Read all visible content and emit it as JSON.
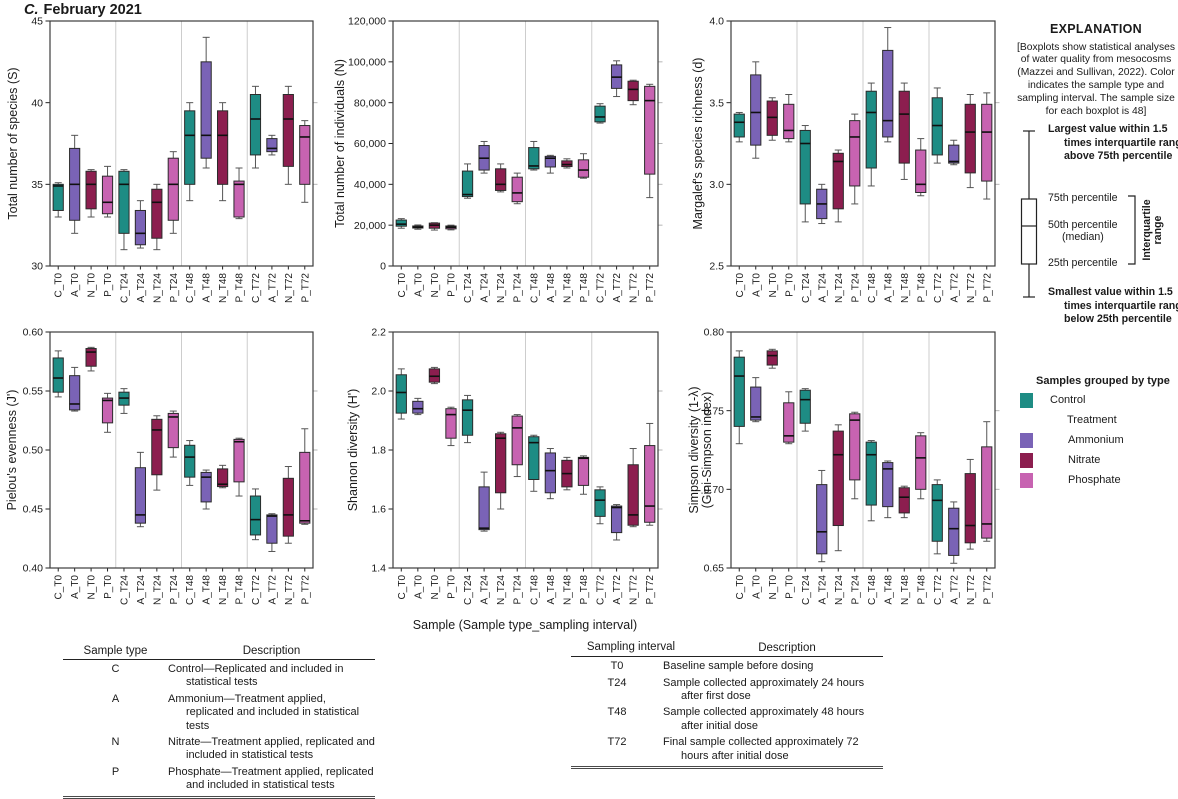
{
  "title": {
    "prefix": "C.",
    "label": "February 2021"
  },
  "x_axis_label": "Sample (Sample type_sampling interval)",
  "colors": {
    "control": "#1e8c84",
    "ammonium": "#7a63b6",
    "nitrate": "#8c1e4f",
    "phosphate": "#c763b1",
    "box_edge": "#2b2b2b",
    "whisker": "#555555",
    "median": "#101010",
    "separator": "#cdcdcd",
    "axis": "#3c3c3c"
  },
  "group_of": {
    "C": "control",
    "A": "ammonium",
    "N": "nitrate",
    "P": "phosphate"
  },
  "categories": [
    "C_T0",
    "A_T0",
    "N_T0",
    "P_T0",
    "C_T24",
    "A_T24",
    "N_T24",
    "P_T24",
    "C_T48",
    "A_T48",
    "N_T48",
    "P_T48",
    "C_T72",
    "A_T72",
    "N_T72",
    "P_T72"
  ],
  "box_columns": [
    "category",
    "whisker_low",
    "q1",
    "median",
    "q3",
    "whisker_high"
  ],
  "chart_data": [
    {
      "type": "box",
      "ylabel": [
        "Total number of species (S)"
      ],
      "ylabel_offset": 33,
      "ylim": [
        30,
        45
      ],
      "ytick_values": [
        30,
        35,
        40,
        45
      ],
      "ytick_labels": [
        "30",
        "35",
        "40",
        "45"
      ],
      "boxes": [
        [
          "C_T0",
          33.0,
          33.4,
          34.9,
          35.0,
          35.1
        ],
        [
          "A_T0",
          32.0,
          32.8,
          35.0,
          37.2,
          38.0
        ],
        [
          "N_T0",
          33.0,
          33.5,
          35.0,
          35.8,
          35.9
        ],
        [
          "P_T0",
          33.0,
          33.2,
          33.9,
          35.5,
          36.1
        ],
        [
          "C_T24",
          31.0,
          32.0,
          35.0,
          35.8,
          35.9
        ],
        [
          "A_T24",
          31.1,
          31.3,
          32.0,
          33.4,
          34.0
        ],
        [
          "N_T24",
          31.0,
          31.7,
          33.9,
          34.7,
          35.0
        ],
        [
          "P_T24",
          32.0,
          32.8,
          35.0,
          36.6,
          37.0
        ],
        [
          "C_T48",
          34.0,
          35.0,
          38.0,
          39.5,
          40.0
        ],
        [
          "A_T48",
          36.0,
          36.6,
          38.0,
          42.5,
          44.0
        ],
        [
          "N_T48",
          34.0,
          35.0,
          38.0,
          39.5,
          40.0
        ],
        [
          "P_T48",
          32.9,
          33.0,
          35.0,
          35.2,
          36.0
        ],
        [
          "C_T72",
          36.0,
          36.8,
          39.0,
          40.5,
          41.0
        ],
        [
          "A_T72",
          36.8,
          37.0,
          37.2,
          37.8,
          38.0
        ],
        [
          "N_T72",
          35.0,
          36.1,
          39.0,
          40.5,
          41.0
        ],
        [
          "P_T72",
          33.9,
          35.0,
          37.9,
          38.6,
          38.9
        ]
      ]
    },
    {
      "type": "box",
      "ylabel": [
        "Total number of individuals (N)"
      ],
      "ylabel_offset": 49,
      "ylim": [
        0,
        120000
      ],
      "ytick_values": [
        0,
        20000,
        40000,
        60000,
        80000,
        100000,
        120000
      ],
      "ytick_labels": [
        "0",
        "20,000",
        "40,000",
        "60,000",
        "80,000",
        "100,000",
        "120,000"
      ],
      "boxes": [
        [
          "C_T0",
          18500,
          19500,
          20500,
          22500,
          23200
        ],
        [
          "A_T0",
          18000,
          18600,
          19000,
          19600,
          20100
        ],
        [
          "N_T0",
          17600,
          18500,
          20000,
          21000,
          21200
        ],
        [
          "P_T0",
          17700,
          18200,
          19000,
          19600,
          20000
        ],
        [
          "C_T24",
          33200,
          34000,
          35000,
          46500,
          50000
        ],
        [
          "A_T24",
          45500,
          47000,
          52800,
          59000,
          61000
        ],
        [
          "N_T24",
          36300,
          37000,
          40000,
          47600,
          50000
        ],
        [
          "P_T24",
          30500,
          31500,
          35800,
          43500,
          45500
        ],
        [
          "C_T48",
          47000,
          47600,
          49000,
          58000,
          61000
        ],
        [
          "A_T48",
          45500,
          48500,
          52800,
          53700,
          54200
        ],
        [
          "N_T48",
          48000,
          48700,
          49700,
          51500,
          52500
        ],
        [
          "P_T48",
          43000,
          43500,
          47000,
          52000,
          55000
        ],
        [
          "C_T72",
          70000,
          70600,
          73000,
          78300,
          79500
        ],
        [
          "A_T72",
          83000,
          87000,
          92500,
          98500,
          100500
        ],
        [
          "N_T72",
          79000,
          81000,
          86500,
          90500,
          91000
        ],
        [
          "P_T72",
          33500,
          45000,
          81000,
          88000,
          89000
        ]
      ]
    },
    {
      "type": "box",
      "ylabel": [
        "Margalef's species richness (d)"
      ],
      "ylabel_offset": 29,
      "ylim": [
        2.5,
        4.0
      ],
      "ytick_values": [
        2.5,
        3.0,
        3.5,
        4.0
      ],
      "ytick_labels": [
        "2.5",
        "3.0",
        "3.5",
        "4.0"
      ],
      "boxes": [
        [
          "C_T0",
          3.26,
          3.29,
          3.38,
          3.43,
          3.44
        ],
        [
          "A_T0",
          3.16,
          3.24,
          3.44,
          3.67,
          3.75
        ],
        [
          "N_T0",
          3.27,
          3.3,
          3.41,
          3.51,
          3.53
        ],
        [
          "P_T0",
          3.26,
          3.28,
          3.33,
          3.49,
          3.55
        ],
        [
          "C_T24",
          2.77,
          2.88,
          3.25,
          3.33,
          3.36
        ],
        [
          "A_T24",
          2.76,
          2.79,
          2.88,
          2.97,
          3.0
        ],
        [
          "N_T24",
          2.77,
          2.85,
          3.14,
          3.19,
          3.21
        ],
        [
          "P_T24",
          2.88,
          2.99,
          3.29,
          3.39,
          3.43
        ],
        [
          "C_T48",
          2.99,
          3.1,
          3.44,
          3.57,
          3.62
        ],
        [
          "A_T48",
          3.26,
          3.29,
          3.39,
          3.82,
          3.96
        ],
        [
          "N_T48",
          3.03,
          3.13,
          3.43,
          3.57,
          3.62
        ],
        [
          "P_T48",
          2.93,
          2.95,
          3.0,
          3.21,
          3.28
        ],
        [
          "C_T72",
          3.13,
          3.18,
          3.36,
          3.53,
          3.59
        ],
        [
          "A_T72",
          3.12,
          3.13,
          3.14,
          3.24,
          3.27
        ],
        [
          "N_T72",
          2.98,
          3.07,
          3.32,
          3.49,
          3.55
        ],
        [
          "P_T72",
          2.91,
          3.02,
          3.32,
          3.49,
          3.56
        ]
      ]
    },
    {
      "type": "box",
      "ylabel": [
        "Pielou's evenness (J')"
      ],
      "ylabel_offset": 34,
      "ylim": [
        0.4,
        0.6
      ],
      "ytick_values": [
        0.4,
        0.45,
        0.5,
        0.55,
        0.6
      ],
      "ytick_labels": [
        "0.40",
        "0.45",
        "0.50",
        "0.55",
        "0.60"
      ],
      "boxes": [
        [
          "C_T0",
          0.545,
          0.549,
          0.561,
          0.578,
          0.584
        ],
        [
          "A_T0",
          0.533,
          0.534,
          0.539,
          0.563,
          0.57
        ],
        [
          "N_T0",
          0.567,
          0.571,
          0.583,
          0.586,
          0.587
        ],
        [
          "P_T0",
          0.515,
          0.523,
          0.542,
          0.544,
          0.548
        ],
        [
          "C_T24",
          0.531,
          0.538,
          0.544,
          0.549,
          0.552
        ],
        [
          "A_T24",
          0.435,
          0.438,
          0.445,
          0.485,
          0.498
        ],
        [
          "N_T24",
          0.466,
          0.479,
          0.517,
          0.526,
          0.529
        ],
        [
          "P_T24",
          0.494,
          0.502,
          0.528,
          0.531,
          0.533
        ],
        [
          "C_T48",
          0.47,
          0.477,
          0.494,
          0.504,
          0.508
        ],
        [
          "A_T48",
          0.45,
          0.456,
          0.477,
          0.481,
          0.483
        ],
        [
          "N_T48",
          0.468,
          0.469,
          0.471,
          0.484,
          0.487
        ],
        [
          "P_T48",
          0.461,
          0.473,
          0.507,
          0.509,
          0.51
        ],
        [
          "C_T72",
          0.424,
          0.428,
          0.441,
          0.461,
          0.467
        ],
        [
          "A_T72",
          0.414,
          0.421,
          0.444,
          0.445,
          0.446
        ],
        [
          "N_T72",
          0.421,
          0.427,
          0.445,
          0.476,
          0.486
        ],
        [
          "P_T72",
          0.437,
          0.438,
          0.44,
          0.498,
          0.518
        ]
      ]
    },
    {
      "type": "box",
      "ylabel": [
        "Shannon diversity (H')"
      ],
      "ylabel_offset": 36,
      "ylim": [
        1.4,
        2.2
      ],
      "ytick_values": [
        1.4,
        1.6,
        1.8,
        2.0,
        2.2
      ],
      "ytick_labels": [
        "1.4",
        "1.6",
        "1.8",
        "2.0",
        "2.2"
      ],
      "boxes": [
        [
          "C_T0",
          1.905,
          1.925,
          1.995,
          2.055,
          2.075
        ],
        [
          "A_T0",
          1.92,
          1.925,
          1.94,
          1.965,
          1.975
        ],
        [
          "N_T0",
          2.025,
          2.03,
          2.05,
          2.075,
          2.08
        ],
        [
          "P_T0",
          1.815,
          1.84,
          1.92,
          1.94,
          1.945
        ],
        [
          "C_T24",
          1.825,
          1.85,
          1.935,
          1.97,
          1.985
        ],
        [
          "A_T24",
          1.525,
          1.53,
          1.535,
          1.675,
          1.725
        ],
        [
          "N_T24",
          1.6,
          1.655,
          1.84,
          1.855,
          1.86
        ],
        [
          "P_T24",
          1.71,
          1.75,
          1.875,
          1.915,
          1.92
        ],
        [
          "C_T48",
          1.66,
          1.7,
          1.825,
          1.845,
          1.85
        ],
        [
          "A_T48",
          1.635,
          1.655,
          1.73,
          1.79,
          1.805
        ],
        [
          "N_T48",
          1.665,
          1.675,
          1.72,
          1.765,
          1.775
        ],
        [
          "P_T48",
          1.65,
          1.68,
          1.772,
          1.775,
          1.78
        ],
        [
          "C_T72",
          1.55,
          1.575,
          1.63,
          1.665,
          1.675
        ],
        [
          "A_T72",
          1.495,
          1.52,
          1.605,
          1.61,
          1.615
        ],
        [
          "N_T72",
          1.54,
          1.545,
          1.58,
          1.75,
          1.805
        ],
        [
          "P_T72",
          1.545,
          1.555,
          1.61,
          1.815,
          1.89
        ]
      ]
    },
    {
      "type": "box",
      "ylabel": [
        "Simpson diversity (1-λ)",
        "(Gini-Simpson index)"
      ],
      "ylabel_offset": 33,
      "ylim": [
        0.65,
        0.8
      ],
      "ytick_values": [
        0.65,
        0.7,
        0.75,
        0.8
      ],
      "ytick_labels": [
        "0.65",
        "0.70",
        "0.75",
        "0.80"
      ],
      "boxes": [
        [
          "C_T0",
          0.729,
          0.74,
          0.772,
          0.784,
          0.788
        ],
        [
          "A_T0",
          0.743,
          0.744,
          0.746,
          0.765,
          0.771
        ],
        [
          "N_T0",
          0.777,
          0.779,
          0.785,
          0.788,
          0.789
        ],
        [
          "P_T0",
          0.729,
          0.73,
          0.734,
          0.755,
          0.762
        ],
        [
          "C_T24",
          0.737,
          0.742,
          0.757,
          0.763,
          0.764
        ],
        [
          "A_T24",
          0.654,
          0.659,
          0.673,
          0.703,
          0.712
        ],
        [
          "N_T24",
          0.661,
          0.677,
          0.722,
          0.737,
          0.741
        ],
        [
          "P_T24",
          0.694,
          0.706,
          0.744,
          0.748,
          0.749
        ],
        [
          "C_T48",
          0.68,
          0.69,
          0.722,
          0.73,
          0.731
        ],
        [
          "A_T48",
          0.682,
          0.689,
          0.713,
          0.717,
          0.718
        ],
        [
          "N_T48",
          0.682,
          0.685,
          0.695,
          0.701,
          0.702
        ],
        [
          "P_T48",
          0.694,
          0.7,
          0.72,
          0.734,
          0.736
        ],
        [
          "C_T72",
          0.659,
          0.667,
          0.693,
          0.703,
          0.706
        ],
        [
          "A_T72",
          0.653,
          0.658,
          0.675,
          0.688,
          0.692
        ],
        [
          "N_T72",
          0.662,
          0.666,
          0.677,
          0.71,
          0.719
        ],
        [
          "P_T72",
          0.667,
          0.669,
          0.678,
          0.727,
          0.743
        ]
      ]
    }
  ],
  "explanation": {
    "title": "EXPLANATION",
    "note": "[Boxplots show statistical analyses of water quality from mesocosms (Mazzei and Sullivan, 2022). Color indicates the sample type and sampling interval. The sample size for each boxplot is 48]",
    "key": {
      "largest": "Largest value within 1.5 times interquartile range above 75th percentile",
      "p75": "75th percentile",
      "p50": "50th percentile",
      "median_note": "(median)",
      "p25": "25th percentile",
      "iqr": "Interquartile range",
      "smallest": "Smallest value within 1.5 times interquartile range below 25th percentile"
    },
    "legend": {
      "heading": "Samples grouped by type",
      "items": [
        {
          "label": "Control",
          "color_key": "control",
          "indent": 0
        },
        {
          "label": "Treatment",
          "indent": 0
        },
        {
          "label": "Ammonium",
          "color_key": "ammonium",
          "indent": 1
        },
        {
          "label": "Nitrate",
          "color_key": "nitrate",
          "indent": 1
        },
        {
          "label": "Phosphate",
          "color_key": "phosphate",
          "indent": 1
        }
      ]
    }
  },
  "tables": [
    {
      "headers": [
        "Sample type",
        "Description"
      ],
      "rows": [
        [
          "C",
          "Control—Replicated and included in statistical tests"
        ],
        [
          "A",
          "Ammonium—Treatment applied, replicated and included in statistical tests"
        ],
        [
          "N",
          "Nitrate—Treatment applied, replicated and included in statistical tests"
        ],
        [
          "P",
          "Phosphate—Treatment applied, replicated and included in statistical tests"
        ]
      ]
    },
    {
      "headers": [
        "Sampling interval",
        "Description"
      ],
      "rows": [
        [
          "T0",
          "Baseline sample before dosing"
        ],
        [
          "T24",
          "Sample collected approximately 24 hours after first dose"
        ],
        [
          "T48",
          "Sample collected approximately 48 hours after initial dose"
        ],
        [
          "T72",
          "Final sample collected approximately 72 hours after initial dose"
        ]
      ]
    }
  ]
}
